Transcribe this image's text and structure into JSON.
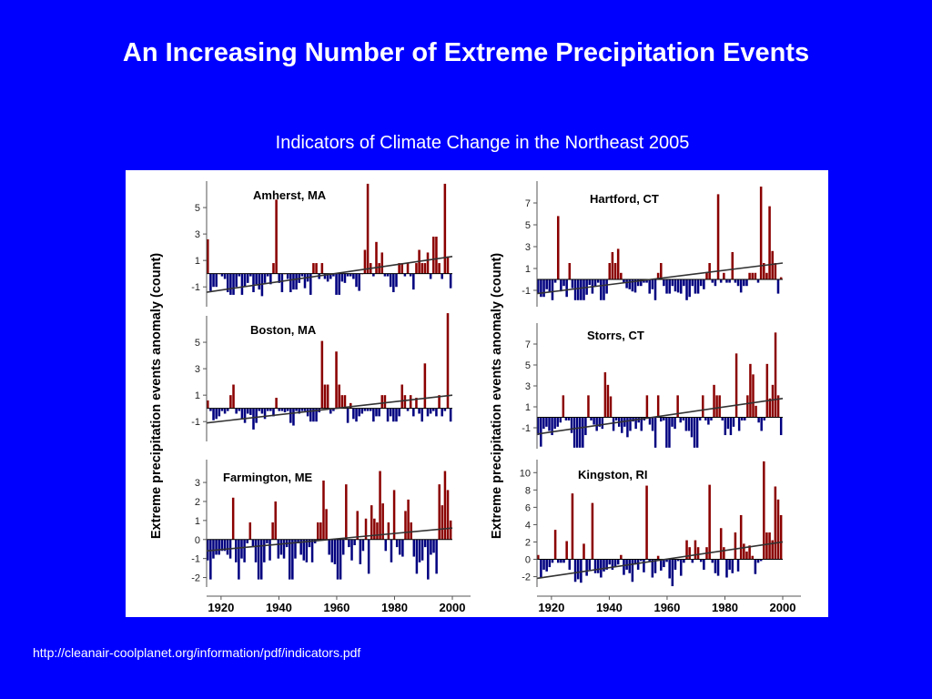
{
  "slide": {
    "title": "An Increasing Number of Extreme Precipitation Events",
    "subtitle": "Indicators of Climate Change in the Northeast 2005",
    "source_url": "http://cleanair-coolplanet.org/information/pdf/indicators.pdf"
  },
  "colors": {
    "background": "#0000ff",
    "positive_bar": "#8b0000",
    "negative_bar": "#000080",
    "trend_line": "#333333"
  },
  "chart_data": [
    {
      "type": "bar",
      "title": "Amherst, MA",
      "ylabel": "Extreme precipitation events anomaly (count)",
      "xlim": [
        1915,
        2000
      ],
      "ylim": [
        -2.5,
        7
      ],
      "yticks": [
        5,
        3,
        1,
        -1
      ],
      "xticks": [],
      "trend": [
        [
          1915,
          -1.4
        ],
        [
          2000,
          1.3
        ]
      ],
      "values": [
        2.6,
        -1.3,
        -1,
        -1,
        0,
        -0.2,
        -0.4,
        -1.4,
        -1.6,
        -1.6,
        -1,
        -0.2,
        -1.6,
        -1,
        -0.7,
        -0.2,
        -1.4,
        -0.8,
        -1.2,
        -1.7,
        -0.7,
        -0.2,
        -0.8,
        0.8,
        5.6,
        -0.7,
        -1.4,
        0,
        -0.4,
        -1.4,
        -1.2,
        -1.2,
        -0.7,
        -0.2,
        -1.1,
        -0.6,
        -1.6,
        0.8,
        0.8,
        -0.4,
        0.8,
        -0.4,
        -0.6,
        -0.4,
        -0.2,
        -1.6,
        -1.6,
        -0.6,
        -0.7,
        -0.2,
        -0.2,
        -0.4,
        -1,
        -1.3,
        0,
        1.8,
        6.8,
        0.8,
        -0.2,
        2.4,
        0.8,
        1.6,
        -0.2,
        -0.2,
        -1,
        -1.4,
        -1,
        0.8,
        0.8,
        -0.2,
        0.8,
        -0.2,
        -1.2,
        0.8,
        1.8,
        0.8,
        0.8,
        1.6,
        -0.4,
        2.8,
        2.8,
        0.8,
        -0.4,
        6.8,
        1.3,
        -1.1
      ]
    },
    {
      "type": "bar",
      "title": "Hartford, CT",
      "ylabel": "Extreme precipitation events anomaly (count)",
      "xlim": [
        1915,
        2000
      ],
      "ylim": [
        -2.5,
        9
      ],
      "yticks": [
        7,
        5,
        3,
        1,
        -1
      ],
      "xticks": [],
      "trend": [
        [
          1915,
          -1.3
        ],
        [
          2000,
          1.5
        ]
      ],
      "values": [
        -1.3,
        -1.6,
        -1.6,
        -0.9,
        -1.2,
        -1.9,
        -0.3,
        5.8,
        -1.1,
        -0.6,
        -1.6,
        1.5,
        -0.8,
        -1.9,
        -1.9,
        -1.9,
        -1.9,
        -1.4,
        -0.5,
        -1.3,
        -0.6,
        -0.3,
        -1.9,
        -1.9,
        -1.3,
        1.5,
        2.5,
        1.5,
        2.8,
        0.6,
        -0.3,
        -0.8,
        -0.9,
        -1.1,
        -1.2,
        -0.6,
        -0.6,
        -0.3,
        -0.3,
        -1.3,
        -0.9,
        -1.9,
        0.6,
        1.5,
        -0.6,
        -1.3,
        -1.3,
        -0.6,
        -1.1,
        -1.2,
        -1.3,
        -0.6,
        -1.9,
        -1.6,
        -0.6,
        -1.3,
        -1.3,
        -0.6,
        -0.9,
        0.6,
        1.5,
        -0.3,
        -0.6,
        7.8,
        -0.3,
        0.6,
        -0.3,
        -0.3,
        2.5,
        -0.3,
        -0.6,
        -1.2,
        -0.6,
        -0.6,
        0.6,
        0.6,
        0.6,
        -0.3,
        8.5,
        1.5,
        0.6,
        6.7,
        2.6,
        1.5,
        -1.3,
        0.2
      ]
    },
    {
      "type": "bar",
      "title": "Boston, MA",
      "ylabel": "Extreme precipitation events anomaly (count)",
      "xlim": [
        1915,
        2000
      ],
      "ylim": [
        -2.5,
        7
      ],
      "yticks": [
        5,
        3,
        1,
        -1
      ],
      "xticks": [],
      "trend": [
        [
          1915,
          -1.1
        ],
        [
          2000,
          1.0
        ]
      ],
      "values": [
        0.6,
        -0.2,
        -0.9,
        -0.8,
        -0.6,
        -0.2,
        -0.4,
        -0.2,
        1,
        1.8,
        -0.4,
        -0.2,
        -0.8,
        -1.1,
        -0.4,
        -0.5,
        -1.6,
        -1.1,
        -0.2,
        -0.4,
        -0.8,
        -0.2,
        -0.2,
        -0.6,
        0.8,
        -0.2,
        -0.2,
        -0.3,
        -0.2,
        -1.1,
        -1.3,
        -0.2,
        -0.4,
        -0.2,
        -0.2,
        -0.6,
        -1,
        -1,
        -1,
        -0.3,
        5.1,
        1.8,
        1.8,
        -0.4,
        -0.2,
        4.3,
        1.8,
        1,
        1,
        -1.1,
        0.4,
        -0.8,
        -1,
        -0.6,
        -0.4,
        -0.2,
        -0.2,
        -0.2,
        -1,
        -0.6,
        -0.6,
        1,
        1,
        -1,
        -0.6,
        -1,
        -1,
        -0.6,
        1.8,
        1,
        -0.2,
        1,
        -0.6,
        0.8,
        -0.4,
        -1,
        3.4,
        -0.6,
        -0.4,
        -0.2,
        -0.6,
        1,
        -0.6,
        -0.2,
        7.2,
        -1
      ]
    },
    {
      "type": "bar",
      "title": "Storrs, CT",
      "ylabel": "Extreme precipitation events anomaly (count)",
      "xlim": [
        1915,
        2000
      ],
      "ylim": [
        -3,
        9
      ],
      "yticks": [
        7,
        5,
        3,
        1,
        -1
      ],
      "xticks": [],
      "trend": [
        [
          1915,
          -1.6
        ],
        [
          2000,
          1.8
        ]
      ],
      "values": [
        -1.7,
        -2.8,
        -1.1,
        -0.9,
        -1.3,
        -1.7,
        -1.1,
        -0.9,
        -0.5,
        2.1,
        -0.3,
        -0.3,
        -1.5,
        -2.9,
        -2.9,
        -2.9,
        -2.9,
        -1.7,
        2.1,
        -0.3,
        -0.7,
        -1.3,
        -0.9,
        -1.1,
        4.3,
        3.1,
        2,
        -1.3,
        -0.3,
        -0.9,
        -1.5,
        -0.9,
        -1.9,
        -1.3,
        -0.4,
        -1.1,
        -0.5,
        -1.3,
        -0.3,
        2.1,
        -0.7,
        -1.3,
        -2.9,
        2.1,
        -0.4,
        -0.3,
        -2.9,
        -2.9,
        -0.9,
        -1.1,
        2.1,
        -0.5,
        -0.3,
        -1.3,
        -1.3,
        -1.9,
        -2.9,
        -2.9,
        -0.3,
        2.1,
        -0.3,
        -0.7,
        -0.3,
        3.1,
        2.1,
        2.1,
        -0.3,
        -1.7,
        -1.1,
        -1.7,
        -0.9,
        6.1,
        -1.3,
        -0.3,
        -0.3,
        2.1,
        5.1,
        4.1,
        1.1,
        -0.5,
        -1.3,
        -0.3,
        5.1,
        1.8,
        3.1,
        8.1,
        2.1,
        -1.7
      ]
    },
    {
      "type": "bar",
      "title": "Farmington, ME",
      "ylabel": "Extreme precipitation events anomaly (count)",
      "xlim": [
        1915,
        2000
      ],
      "ylim": [
        -2.5,
        4.2
      ],
      "yticks": [
        3,
        2,
        1,
        0,
        -1,
        -2
      ],
      "xticks": [
        "1920",
        "1940",
        "1960",
        "1980",
        "2000"
      ],
      "trend": [
        [
          1915,
          -0.6
        ],
        [
          2000,
          0.6
        ]
      ],
      "values": [
        -1.1,
        -2.1,
        -1,
        -0.8,
        -0.8,
        -0.6,
        -0.6,
        -0.8,
        -1,
        2.2,
        -1.2,
        -2.1,
        -1,
        -1.2,
        -0.2,
        0.9,
        -0.4,
        -1.2,
        -2.1,
        -2.1,
        -1.2,
        -0.2,
        -1.1,
        0.9,
        2,
        -1,
        -0.8,
        -1,
        -0.4,
        -2.1,
        -2.1,
        -1,
        -0.2,
        -0.8,
        -1.1,
        -1.2,
        -0.4,
        -1.2,
        -0.2,
        0.9,
        0.9,
        3.1,
        1.6,
        -0.8,
        -1.2,
        -1.3,
        -2.1,
        -2.1,
        -0.8,
        2.9,
        -0.4,
        -1.1,
        -0.3,
        1.5,
        -1.3,
        -0.6,
        1.1,
        -1.8,
        1.8,
        1.1,
        0.9,
        3.6,
        1.9,
        -0.6,
        0.9,
        -1.2,
        2.6,
        -0.4,
        -0.8,
        -0.9,
        1.5,
        2.1,
        0.9,
        -0.9,
        -1.8,
        -1.2,
        -1.1,
        -0.4,
        -2.1,
        -0.8,
        -0.7,
        -1.8,
        2.9,
        1.8,
        3.6,
        2.6,
        1
      ]
    },
    {
      "type": "bar",
      "title": "Kingston, RI",
      "ylabel": "Extreme precipitation events anomaly (count)",
      "xlim": [
        1915,
        2000
      ],
      "ylim": [
        -3.2,
        11.5
      ],
      "yticks": [
        10,
        8,
        6,
        4,
        2,
        0,
        -2
      ],
      "xticks": [
        "1920",
        "1940",
        "1960",
        "1980",
        "2000"
      ],
      "trend": [
        [
          1915,
          -2.2
        ],
        [
          2000,
          2.0
        ]
      ],
      "values": [
        0.5,
        -2.2,
        -1.2,
        -1.4,
        -0.9,
        -0.4,
        3.4,
        -0.4,
        -0.4,
        -0.4,
        2.1,
        -1.2,
        7.6,
        -2.6,
        -2.3,
        -2.7,
        1.8,
        -1.9,
        -1.2,
        6.5,
        -1.6,
        -1.6,
        -2.1,
        -1.4,
        -1.2,
        -0.6,
        -1.2,
        -0.8,
        -0.6,
        0.5,
        -1.8,
        -1.2,
        -1.6,
        -2.6,
        -0.6,
        -1.2,
        -0.2,
        -1.5,
        8.5,
        -0.2,
        -2.1,
        -1.6,
        0.4,
        -1.3,
        -0.9,
        -0.3,
        -2.2,
        -3.1,
        -1.2,
        -0.2,
        -1.9,
        -0.4,
        2.2,
        1.4,
        -0.4,
        2.2,
        1.4,
        -0.3,
        -1.2,
        1.4,
        8.6,
        -0.4,
        -1.6,
        -1.9,
        3.6,
        1.4,
        -2.1,
        -1.2,
        -1.6,
        3.1,
        -1.4,
        5.1,
        1.8,
        0.9,
        1.6,
        0.4,
        -1.7,
        -0.4,
        -0.2,
        11.3,
        3.1,
        3.1,
        2.2,
        8.4,
        6.9,
        5.1
      ]
    }
  ]
}
